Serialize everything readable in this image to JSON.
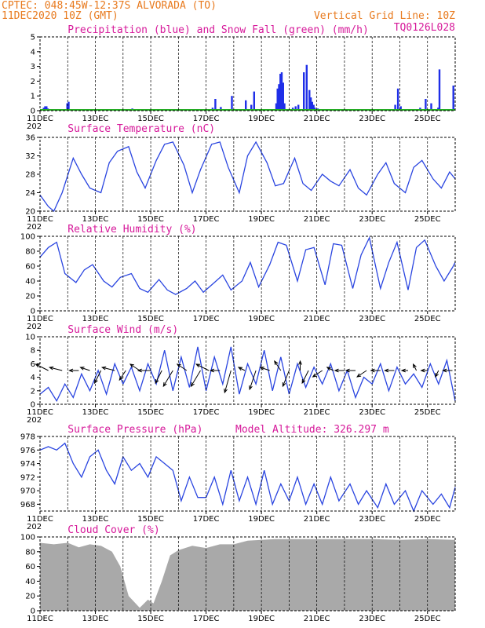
{
  "header": {
    "line1": "CPTEC:   048:45W-12:37S  ALVORADA (TO)",
    "line2": "11DEC2020 10Z (GMT)",
    "grid_note": "Vertical Grid Line: 10Z",
    "run_code": "TQ0126L028"
  },
  "x_axis": {
    "labels": [
      "11DEC",
      "13DEC",
      "15DEC",
      "17DEC",
      "19DEC",
      "21DEC",
      "23DEC",
      "25DEC"
    ],
    "year_fragment": "202"
  },
  "colors": {
    "precip": "#1f2fe8",
    "snow": "#22aa22",
    "line": "#2a45e0",
    "cloud": "#a9a9a9",
    "title": "#d6199a",
    "header": "#e87a1e"
  },
  "chart_data": [
    {
      "type": "bar",
      "title": "Precipitation (blue) and Snow Fall (green) (mm/h)",
      "ylim": [
        0,
        5
      ],
      "yticks": [
        0,
        1,
        2,
        3,
        4,
        5
      ],
      "series": [
        {
          "name": "Precipitation",
          "x": [
            0.1,
            0.15,
            0.2,
            0.25,
            0.95,
            1.0,
            3.3,
            5.2,
            6.2,
            6.3,
            6.5,
            6.9,
            7.4,
            7.6,
            7.7,
            8.5,
            8.55,
            8.6,
            8.65,
            8.7,
            8.75,
            8.8,
            9.1,
            9.2,
            9.3,
            9.5,
            9.6,
            9.7,
            9.75,
            9.8,
            9.85,
            9.9,
            10.0,
            11.6,
            12.8,
            12.9,
            13.0,
            13.7,
            13.9,
            14.1,
            14.35,
            14.4,
            14.9
          ],
          "values": [
            0.2,
            0.3,
            0.3,
            0.15,
            0.5,
            0.6,
            0.15,
            0.1,
            0.2,
            0.8,
            0.25,
            1.0,
            0.7,
            0.4,
            1.3,
            0.5,
            1.5,
            1.8,
            2.5,
            2.6,
            1.9,
            0.5,
            0.2,
            0.3,
            0.4,
            2.6,
            3.1,
            1.4,
            0.9,
            0.6,
            0.4,
            0.2,
            0.15,
            0.1,
            0.4,
            1.5,
            0.3,
            0.2,
            0.8,
            0.5,
            0.2,
            2.8,
            1.7
          ]
        },
        {
          "name": "Snow Fall",
          "x": [
            0,
            15
          ],
          "values": [
            0,
            0
          ]
        }
      ]
    },
    {
      "type": "line",
      "title": "Surface Temperature (nC)",
      "ylim": [
        20,
        36
      ],
      "yticks": [
        20,
        24,
        28,
        32,
        36
      ],
      "series": [
        {
          "name": "",
          "x": [
            0,
            0.3,
            0.5,
            0.8,
            1.2,
            1.5,
            1.8,
            2.2,
            2.5,
            2.8,
            3.2,
            3.5,
            3.8,
            4.2,
            4.5,
            4.8,
            5.2,
            5.5,
            5.8,
            6.2,
            6.5,
            6.8,
            7.2,
            7.5,
            7.8,
            8.2,
            8.5,
            8.8,
            9.2,
            9.5,
            9.8,
            10.2,
            10.5,
            10.8,
            11.2,
            11.5,
            11.8,
            12.2,
            12.5,
            12.8,
            13.2,
            13.5,
            13.8,
            14.2,
            14.5,
            14.8,
            15
          ],
          "values": [
            23.5,
            21,
            20,
            24,
            31.5,
            28,
            25,
            24,
            30.5,
            33,
            34,
            28.5,
            25,
            31,
            34.5,
            35,
            30,
            24,
            29,
            34.5,
            35,
            29.5,
            24,
            32,
            35,
            30.5,
            25.5,
            26,
            31.5,
            26,
            24.5,
            28,
            26.5,
            25.5,
            29,
            25,
            23.5,
            28,
            30.5,
            26,
            24,
            29.5,
            31,
            27,
            25,
            28.5,
            27
          ]
        }
      ]
    },
    {
      "type": "line",
      "title": "Relative Humidity (%)",
      "ylim": [
        0,
        100
      ],
      "yticks": [
        0,
        20,
        40,
        60,
        80,
        100
      ],
      "series": [
        {
          "name": "",
          "x": [
            0,
            0.3,
            0.6,
            0.9,
            1.3,
            1.6,
            1.9,
            2.3,
            2.6,
            2.9,
            3.3,
            3.6,
            3.9,
            4.3,
            4.6,
            4.9,
            5.3,
            5.6,
            5.9,
            6.3,
            6.6,
            6.9,
            7.3,
            7.6,
            7.9,
            8.3,
            8.6,
            8.9,
            9.3,
            9.6,
            9.9,
            10.3,
            10.6,
            10.9,
            11.3,
            11.6,
            11.9,
            12.3,
            12.6,
            12.9,
            13.3,
            13.6,
            13.9,
            14.3,
            14.6,
            14.9,
            15
          ],
          "values": [
            72,
            85,
            92,
            50,
            38,
            55,
            62,
            40,
            32,
            45,
            50,
            30,
            25,
            42,
            28,
            22,
            30,
            40,
            25,
            38,
            48,
            28,
            40,
            65,
            32,
            62,
            92,
            88,
            40,
            82,
            85,
            35,
            90,
            88,
            30,
            75,
            98,
            30,
            65,
            92,
            28,
            85,
            95,
            60,
            40,
            58,
            65
          ]
        }
      ]
    },
    {
      "type": "line",
      "title": "Surface Wind (m/s)",
      "ylim": [
        0,
        10
      ],
      "yticks": [
        0,
        2,
        4,
        6,
        8,
        10
      ],
      "series": [
        {
          "name": "",
          "x": [
            0,
            0.3,
            0.6,
            0.9,
            1.2,
            1.5,
            1.8,
            2.1,
            2.4,
            2.7,
            3.0,
            3.3,
            3.6,
            3.9,
            4.2,
            4.5,
            4.8,
            5.1,
            5.4,
            5.7,
            6.0,
            6.3,
            6.6,
            6.9,
            7.2,
            7.5,
            7.8,
            8.1,
            8.4,
            8.7,
            9.0,
            9.3,
            9.6,
            9.9,
            10.2,
            10.5,
            10.8,
            11.1,
            11.4,
            11.7,
            12.0,
            12.3,
            12.6,
            12.9,
            13.2,
            13.5,
            13.8,
            14.1,
            14.4,
            14.7,
            15
          ],
          "values": [
            1.5,
            2.5,
            0.5,
            3,
            1,
            4.5,
            2,
            5,
            1.5,
            6,
            3,
            5.5,
            2,
            6,
            3,
            8,
            2,
            7,
            2.5,
            8.5,
            2,
            7,
            3,
            8.5,
            1.5,
            6,
            3,
            8,
            2,
            7,
            1.5,
            6,
            2.5,
            5.5,
            3,
            6,
            2,
            5,
            1,
            4,
            3,
            6,
            2,
            5.5,
            3,
            4.5,
            2.5,
            6,
            3,
            6.5,
            0.5
          ]
        }
      ],
      "arrows": [
        {
          "x": 0.3,
          "u": -0.4,
          "v": 0.2
        },
        {
          "x": 0.8,
          "u": -0.4,
          "v": 0.1
        },
        {
          "x": 1.4,
          "u": -0.3,
          "v": 0
        },
        {
          "x": 1.8,
          "u": -0.3,
          "v": 0.1
        },
        {
          "x": 2.2,
          "u": -0.2,
          "v": -0.4
        },
        {
          "x": 2.7,
          "u": -0.4,
          "v": 0.1
        },
        {
          "x": 3.1,
          "u": -0.2,
          "v": -0.3
        },
        {
          "x": 3.6,
          "u": -0.3,
          "v": 0.2
        },
        {
          "x": 4.0,
          "u": -0.4,
          "v": 0
        },
        {
          "x": 4.4,
          "u": -0.2,
          "v": -0.4
        },
        {
          "x": 4.8,
          "u": -0.3,
          "v": -0.5
        },
        {
          "x": 5.3,
          "u": -0.3,
          "v": 0.2
        },
        {
          "x": 5.8,
          "u": -0.3,
          "v": -0.5
        },
        {
          "x": 6.1,
          "u": -0.4,
          "v": 0.2
        },
        {
          "x": 6.5,
          "u": -0.3,
          "v": 0
        },
        {
          "x": 6.9,
          "u": -0.2,
          "v": -0.7
        },
        {
          "x": 7.4,
          "u": -0.2,
          "v": 0.1
        },
        {
          "x": 7.8,
          "u": -0.2,
          "v": -0.6
        },
        {
          "x": 8.3,
          "u": -0.3,
          "v": 0.1
        },
        {
          "x": 8.7,
          "u": -0.2,
          "v": 0.3
        },
        {
          "x": 9.0,
          "u": -0.2,
          "v": -0.5
        },
        {
          "x": 9.4,
          "u": 0,
          "v": 0.3
        },
        {
          "x": 9.7,
          "u": -0.2,
          "v": -0.4
        },
        {
          "x": 10.2,
          "u": -0.3,
          "v": -0.2
        },
        {
          "x": 10.6,
          "u": -0.2,
          "v": 0.1
        },
        {
          "x": 11.0,
          "u": -0.3,
          "v": 0
        },
        {
          "x": 11.4,
          "u": -0.3,
          "v": 0
        },
        {
          "x": 11.8,
          "u": -0.3,
          "v": -0.2
        },
        {
          "x": 12.3,
          "u": -0.3,
          "v": 0
        },
        {
          "x": 12.8,
          "u": -0.3,
          "v": 0
        },
        {
          "x": 13.3,
          "u": -0.2,
          "v": 0
        },
        {
          "x": 13.6,
          "u": -0.1,
          "v": 0.2
        },
        {
          "x": 14.0,
          "u": -0.2,
          "v": 0
        },
        {
          "x": 14.4,
          "u": -0.1,
          "v": -0.2
        },
        {
          "x": 14.9,
          "u": -0.3,
          "v": 0
        }
      ]
    },
    {
      "type": "line",
      "title": "Surface Pressure (hPa)",
      "subtitle": "Model Altitude: 326.297 m",
      "ylim": [
        967,
        978
      ],
      "yticks": [
        968,
        970,
        972,
        974,
        976,
        978
      ],
      "series": [
        {
          "name": "",
          "x": [
            0,
            0.3,
            0.6,
            0.9,
            1.2,
            1.5,
            1.8,
            2.1,
            2.4,
            2.7,
            3.0,
            3.3,
            3.6,
            3.9,
            4.2,
            4.5,
            4.8,
            5.1,
            5.4,
            5.7,
            6.0,
            6.3,
            6.6,
            6.9,
            7.2,
            7.5,
            7.8,
            8.1,
            8.4,
            8.7,
            9.0,
            9.3,
            9.6,
            9.9,
            10.2,
            10.5,
            10.8,
            11.2,
            11.5,
            11.8,
            12.2,
            12.5,
            12.8,
            13.2,
            13.5,
            13.8,
            14.2,
            14.5,
            14.8,
            15
          ],
          "values": [
            976,
            976.5,
            976,
            977,
            974,
            972,
            975,
            976,
            973,
            971,
            975,
            973,
            974,
            972,
            975,
            974,
            973,
            968.5,
            972,
            969,
            969,
            972,
            968,
            973,
            968.5,
            972,
            968,
            973,
            968,
            971,
            968.5,
            972,
            968,
            971,
            968,
            972,
            968.5,
            971,
            968,
            970,
            967.5,
            971,
            968,
            970,
            967,
            970,
            968,
            969.5,
            967.5,
            970.5
          ]
        }
      ]
    },
    {
      "type": "area",
      "title": "Cloud Cover (%)",
      "ylim": [
        0,
        100
      ],
      "yticks": [
        0,
        20,
        40,
        60,
        80,
        100
      ],
      "series": [
        {
          "name": "",
          "x": [
            0,
            0.5,
            1,
            1.4,
            1.8,
            2.2,
            2.6,
            2.9,
            3.2,
            3.6,
            3.9,
            4.1,
            4.4,
            4.7,
            5,
            5.5,
            6,
            6.5,
            7,
            7.5,
            8,
            8.5,
            9,
            9.5,
            10,
            11,
            12,
            13,
            14,
            15
          ],
          "values": [
            92,
            90,
            92,
            86,
            90,
            88,
            80,
            60,
            20,
            4,
            15,
            10,
            40,
            75,
            82,
            88,
            85,
            90,
            90,
            95,
            96,
            97,
            97,
            97,
            97,
            97,
            97,
            96,
            97,
            96
          ]
        }
      ]
    }
  ]
}
